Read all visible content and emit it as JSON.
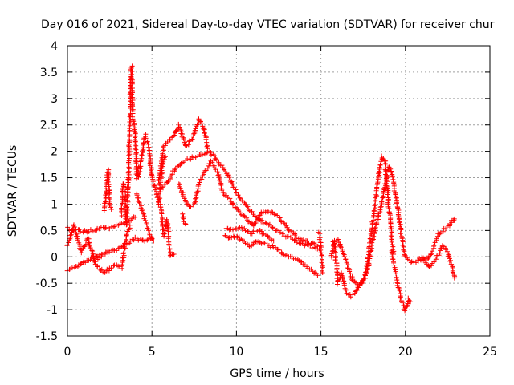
{
  "chart_data": {
    "type": "scatter",
    "title": "Day 016 of 2021, Sidereal Day-to-day VTEC variation (SDTVAR) for receiver chur",
    "xlabel": "GPS time / hours",
    "ylabel": "SDTVAR / TECUs",
    "xlim": [
      0,
      25
    ],
    "ylim": [
      -1.5,
      4
    ],
    "xticks": [
      0,
      5,
      10,
      15,
      20,
      25
    ],
    "yticks": [
      -1.5,
      -1,
      -0.5,
      0,
      0.5,
      1,
      1.5,
      2,
      2.5,
      3,
      3.5,
      4
    ],
    "grid": true,
    "marker": "+",
    "series": [
      {
        "name": "SDTVAR",
        "color": "#ff0000",
        "tracks": [
          {
            "points": [
              [
                0.0,
                0.55
              ],
              [
                0.5,
                0.5
              ],
              [
                1.0,
                0.48
              ],
              [
                1.5,
                0.5
              ],
              [
                2.0,
                0.55
              ],
              [
                2.5,
                0.55
              ],
              [
                3.0,
                0.6
              ],
              [
                3.5,
                0.65
              ],
              [
                4.0,
                0.75
              ]
            ]
          },
          {
            "points": [
              [
                0.0,
                -0.25
              ],
              [
                0.5,
                -0.2
              ],
              [
                1.0,
                -0.1
              ],
              [
                1.5,
                0.0
              ],
              [
                2.0,
                0.05
              ],
              [
                2.5,
                0.1
              ],
              [
                3.0,
                0.15
              ],
              [
                3.5,
                0.25
              ],
              [
                4.0,
                0.35
              ],
              [
                4.5,
                0.3
              ],
              [
                5.0,
                0.35
              ]
            ]
          },
          {
            "points": [
              [
                0.0,
                0.2
              ],
              [
                0.4,
                0.6
              ],
              [
                0.8,
                0.1
              ],
              [
                1.2,
                0.35
              ],
              [
                1.6,
                -0.05
              ],
              [
                2.0,
                0.0
              ]
            ]
          },
          {
            "points": [
              [
                1.5,
                -0.05
              ],
              [
                1.8,
                -0.2
              ],
              [
                2.2,
                -0.3
              ],
              [
                2.6,
                -0.2
              ],
              [
                3.0,
                -0.15
              ],
              [
                3.2,
                -0.2
              ],
              [
                3.5,
                0.4
              ],
              [
                3.7,
                0.6
              ]
            ]
          },
          {
            "points": [
              [
                2.2,
                0.9
              ],
              [
                2.3,
                1.25
              ],
              [
                2.4,
                1.65
              ],
              [
                2.5,
                1.0
              ],
              [
                2.6,
                0.9
              ]
            ]
          },
          {
            "points": [
              [
                3.2,
                0.8
              ],
              [
                3.3,
                1.4
              ],
              [
                3.4,
                1.2
              ],
              [
                3.5,
                0.6
              ],
              [
                3.6,
                1.5
              ]
            ]
          },
          {
            "points": [
              [
                3.6,
                1.2
              ],
              [
                3.7,
                2.7
              ],
              [
                3.75,
                3.4
              ],
              [
                3.8,
                3.6
              ],
              [
                3.85,
                2.9
              ],
              [
                3.9,
                2.6
              ],
              [
                4.0,
                2.4
              ],
              [
                4.1,
                1.5
              ],
              [
                4.2,
                1.7
              ]
            ]
          },
          {
            "points": [
              [
                4.2,
                1.5
              ],
              [
                4.4,
                1.9
              ],
              [
                4.6,
                2.3
              ],
              [
                4.8,
                2.1
              ],
              [
                5.0,
                1.5
              ],
              [
                5.2,
                1.3
              ],
              [
                5.4,
                1.0
              ],
              [
                5.6,
                1.7
              ],
              [
                5.8,
                1.9
              ]
            ]
          },
          {
            "points": [
              [
                4.1,
                1.2
              ],
              [
                4.3,
                1.0
              ],
              [
                4.5,
                0.8
              ],
              [
                4.7,
                0.6
              ],
              [
                4.9,
                0.4
              ],
              [
                5.1,
                0.3
              ]
            ]
          },
          {
            "points": [
              [
                5.4,
                1.4
              ],
              [
                5.7,
                2.1
              ],
              [
                6.0,
                2.2
              ],
              [
                6.3,
                2.3
              ],
              [
                6.6,
                2.5
              ],
              [
                7.0,
                2.1
              ],
              [
                7.4,
                2.25
              ],
              [
                7.8,
                2.6
              ],
              [
                8.1,
                2.4
              ],
              [
                8.3,
                2.05
              ]
            ]
          },
          {
            "points": [
              [
                5.6,
                1.3
              ],
              [
                6.0,
                1.45
              ],
              [
                6.4,
                1.7
              ],
              [
                6.8,
                1.8
              ],
              [
                7.2,
                1.85
              ],
              [
                7.6,
                1.9
              ],
              [
                8.0,
                1.95
              ],
              [
                8.4,
                2.0
              ],
              [
                8.8,
                1.85
              ],
              [
                9.2,
                1.7
              ],
              [
                9.6,
                1.5
              ],
              [
                10.0,
                1.2
              ],
              [
                10.4,
                1.05
              ],
              [
                10.8,
                0.9
              ],
              [
                11.2,
                0.75
              ],
              [
                11.6,
                0.65
              ],
              [
                12.0,
                0.6
              ],
              [
                12.6,
                0.45
              ],
              [
                13.2,
                0.35
              ],
              [
                13.8,
                0.25
              ],
              [
                14.4,
                0.2
              ],
              [
                14.9,
                0.15
              ]
            ]
          },
          {
            "points": [
              [
                5.5,
                1.0
              ],
              [
                5.7,
                0.4
              ],
              [
                5.9,
                0.7
              ],
              [
                6.1,
                0.0
              ],
              [
                6.3,
                0.05
              ]
            ]
          },
          {
            "points": [
              [
                6.6,
                1.4
              ],
              [
                6.9,
                1.1
              ],
              [
                7.2,
                0.95
              ],
              [
                7.5,
                1.0
              ],
              [
                7.8,
                1.4
              ],
              [
                8.1,
                1.6
              ],
              [
                8.5,
                1.8
              ],
              [
                8.9,
                1.6
              ],
              [
                9.2,
                1.2
              ],
              [
                9.6,
                1.1
              ],
              [
                10.0,
                0.9
              ],
              [
                10.5,
                0.75
              ],
              [
                11.0,
                0.6
              ],
              [
                11.5,
                0.85
              ],
              [
                12.0,
                0.85
              ],
              [
                12.5,
                0.75
              ],
              [
                13.0,
                0.55
              ],
              [
                13.5,
                0.4
              ],
              [
                14.0,
                0.3
              ],
              [
                14.5,
                0.25
              ],
              [
                14.8,
                0.2
              ]
            ]
          },
          {
            "points": [
              [
                6.8,
                0.8
              ],
              [
                6.9,
                0.65
              ],
              [
                7.0,
                0.62
              ]
            ]
          },
          {
            "points": [
              [
                9.3,
                0.4
              ],
              [
                9.6,
                0.35
              ],
              [
                10.0,
                0.4
              ],
              [
                10.4,
                0.3
              ],
              [
                10.8,
                0.2
              ],
              [
                11.2,
                0.3
              ],
              [
                11.6,
                0.25
              ],
              [
                12.0,
                0.2
              ],
              [
                12.4,
                0.15
              ],
              [
                12.8,
                0.05
              ],
              [
                13.2,
                0.0
              ],
              [
                13.8,
                -0.1
              ],
              [
                14.4,
                -0.25
              ],
              [
                14.8,
                -0.35
              ]
            ]
          },
          {
            "points": [
              [
                9.4,
                0.55
              ],
              [
                9.8,
                0.5
              ],
              [
                10.3,
                0.55
              ],
              [
                10.8,
                0.45
              ],
              [
                11.3,
                0.5
              ],
              [
                11.8,
                0.4
              ],
              [
                12.2,
                0.3
              ]
            ]
          },
          {
            "points": [
              [
                14.9,
                0.45
              ],
              [
                15.0,
                0.2
              ],
              [
                15.1,
                -0.3
              ]
            ]
          },
          {
            "points": [
              [
                15.6,
                0.0
              ],
              [
                15.8,
                0.3
              ],
              [
                16.0,
                -0.5
              ],
              [
                16.2,
                -0.3
              ],
              [
                16.4,
                -0.55
              ],
              [
                16.6,
                -0.7
              ],
              [
                16.8,
                -0.75
              ],
              [
                17.0,
                -0.7
              ],
              [
                17.2,
                -0.6
              ],
              [
                17.4,
                -0.5
              ],
              [
                17.6,
                -0.4
              ],
              [
                17.8,
                0.0
              ],
              [
                18.0,
                0.5
              ],
              [
                18.2,
                1.0
              ],
              [
                18.4,
                1.5
              ],
              [
                18.6,
                1.9
              ],
              [
                18.8,
                1.8
              ],
              [
                19.0,
                1.0
              ],
              [
                19.2,
                0.35
              ],
              [
                19.3,
                0.05
              ]
            ]
          },
          {
            "points": [
              [
                15.7,
                0.3
              ],
              [
                16.0,
                0.35
              ],
              [
                16.3,
                0.1
              ],
              [
                16.6,
                -0.2
              ],
              [
                16.9,
                -0.45
              ],
              [
                17.2,
                -0.55
              ],
              [
                17.5,
                -0.45
              ],
              [
                17.8,
                -0.2
              ],
              [
                18.0,
                0.2
              ],
              [
                18.2,
                0.5
              ],
              [
                18.4,
                0.8
              ],
              [
                18.6,
                1.0
              ],
              [
                18.8,
                1.4
              ],
              [
                19.0,
                1.7
              ],
              [
                19.2,
                1.6
              ],
              [
                19.4,
                1.2
              ],
              [
                19.6,
                0.8
              ],
              [
                19.8,
                0.3
              ],
              [
                20.0,
                0.0
              ],
              [
                20.3,
                -0.1
              ],
              [
                20.6,
                -0.1
              ],
              [
                20.9,
                -0.05
              ]
            ]
          },
          {
            "points": [
              [
                19.2,
                0.1
              ],
              [
                19.4,
                -0.3
              ],
              [
                19.6,
                -0.6
              ],
              [
                19.8,
                -0.85
              ],
              [
                20.0,
                -1.0
              ],
              [
                20.2,
                -0.8
              ],
              [
                20.3,
                -0.85
              ]
            ]
          },
          {
            "points": [
              [
                20.8,
                -0.05
              ],
              [
                21.2,
                -0.05
              ],
              [
                21.6,
                0.1
              ],
              [
                21.8,
                0.3
              ],
              [
                22.0,
                0.45
              ],
              [
                22.2,
                0.5
              ],
              [
                22.4,
                0.55
              ],
              [
                22.6,
                0.6
              ],
              [
                22.8,
                0.7
              ],
              [
                22.9,
                0.72
              ]
            ]
          },
          {
            "points": [
              [
                21.0,
                0.0
              ],
              [
                21.4,
                -0.2
              ],
              [
                21.8,
                -0.05
              ],
              [
                22.2,
                0.2
              ],
              [
                22.5,
                0.1
              ],
              [
                22.8,
                -0.25
              ],
              [
                22.9,
                -0.4
              ]
            ]
          }
        ]
      }
    ]
  }
}
